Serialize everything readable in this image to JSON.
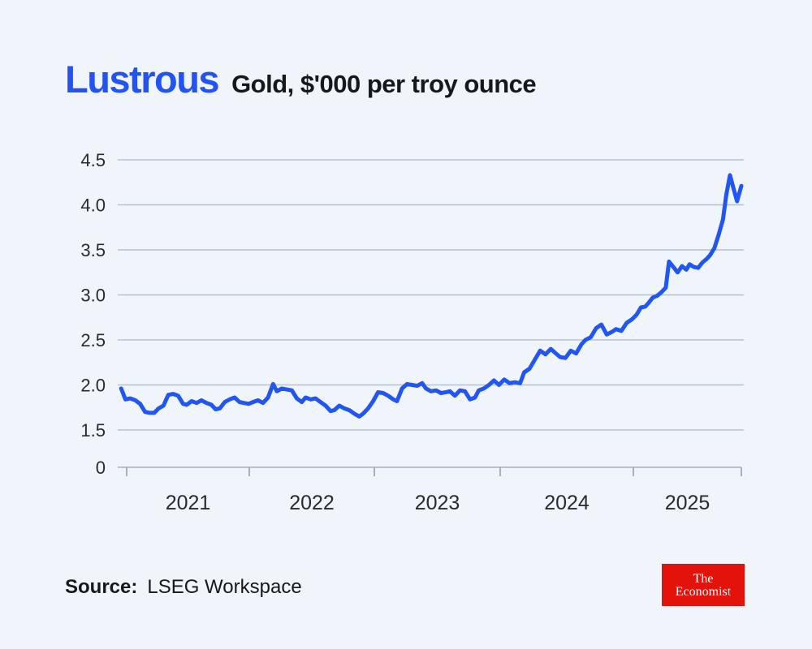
{
  "header": {
    "title": "Lustrous",
    "subtitle": "Gold, $'000 per troy ounce"
  },
  "footer": {
    "source_label": "Source:",
    "source_value": "LSEG Workspace",
    "logo_line1": "The",
    "logo_line2": "Economist"
  },
  "colors": {
    "background": "#f0f5fc",
    "title_blue": "#2453f3",
    "line_blue": "#2156f2",
    "text_dark": "#15181f",
    "axis_text": "#262a33",
    "gridline": "#b8c2cf",
    "axis_line": "#a6b0bf",
    "logo_red": "#e3120b",
    "logo_text": "#ffffff"
  },
  "chart_data": {
    "type": "line",
    "title": "Lustrous",
    "subtitle": "Gold, $'000 per troy ounce",
    "ylabel": "$'000 per troy ounce",
    "xlabel": "",
    "grid": true,
    "legend": false,
    "x_tick_years": [
      2021,
      2022,
      2023,
      2024,
      2025
    ],
    "y_ticks": [
      4.5,
      4.0,
      3.5,
      3.0,
      2.5,
      2.0,
      1.5,
      0
    ],
    "y_tick_labels": [
      "4.5",
      "4.0",
      "3.5",
      "3.0",
      "2.5",
      "2.0",
      "1.5",
      "0"
    ],
    "y_axis_broken_below": 1.5,
    "x_range_years": [
      2020.955,
      2026.0
    ],
    "series": [
      {
        "name": "Gold price, $'000 per troy ounce",
        "points": [
          [
            2020.955,
            1.96
          ],
          [
            2020.99,
            1.84
          ],
          [
            2021.03,
            1.85
          ],
          [
            2021.07,
            1.83
          ],
          [
            2021.11,
            1.79
          ],
          [
            2021.15,
            1.7
          ],
          [
            2021.19,
            1.69
          ],
          [
            2021.225,
            1.69
          ],
          [
            2021.26,
            1.74
          ],
          [
            2021.3,
            1.77
          ],
          [
            2021.34,
            1.89
          ],
          [
            2021.38,
            1.9
          ],
          [
            2021.42,
            1.88
          ],
          [
            2021.46,
            1.79
          ],
          [
            2021.49,
            1.78
          ],
          [
            2021.53,
            1.82
          ],
          [
            2021.57,
            1.8
          ],
          [
            2021.61,
            1.83
          ],
          [
            2021.65,
            1.8
          ],
          [
            2021.69,
            1.78
          ],
          [
            2021.725,
            1.73
          ],
          [
            2021.76,
            1.74
          ],
          [
            2021.8,
            1.81
          ],
          [
            2021.84,
            1.84
          ],
          [
            2021.88,
            1.86
          ],
          [
            2021.92,
            1.81
          ],
          [
            2021.955,
            1.8
          ],
          [
            2021.995,
            1.79
          ],
          [
            2022.03,
            1.81
          ],
          [
            2022.07,
            1.83
          ],
          [
            2022.11,
            1.8
          ],
          [
            2022.15,
            1.86
          ],
          [
            2022.19,
            2.01
          ],
          [
            2022.22,
            1.93
          ],
          [
            2022.26,
            1.96
          ],
          [
            2022.3,
            1.95
          ],
          [
            2022.34,
            1.94
          ],
          [
            2022.38,
            1.85
          ],
          [
            2022.42,
            1.81
          ],
          [
            2022.45,
            1.86
          ],
          [
            2022.49,
            1.84
          ],
          [
            2022.53,
            1.85
          ],
          [
            2022.57,
            1.81
          ],
          [
            2022.61,
            1.77
          ],
          [
            2022.65,
            1.71
          ],
          [
            2022.68,
            1.72
          ],
          [
            2022.72,
            1.77
          ],
          [
            2022.76,
            1.74
          ],
          [
            2022.8,
            1.72
          ],
          [
            2022.84,
            1.68
          ],
          [
            2022.88,
            1.65
          ],
          [
            2022.91,
            1.68
          ],
          [
            2022.95,
            1.74
          ],
          [
            2022.99,
            1.82
          ],
          [
            2023.03,
            1.92
          ],
          [
            2023.07,
            1.91
          ],
          [
            2023.11,
            1.88
          ],
          [
            2023.15,
            1.84
          ],
          [
            2023.18,
            1.82
          ],
          [
            2023.22,
            1.96
          ],
          [
            2023.26,
            2.01
          ],
          [
            2023.3,
            2.0
          ],
          [
            2023.34,
            1.99
          ],
          [
            2023.38,
            2.02
          ],
          [
            2023.41,
            1.96
          ],
          [
            2023.45,
            1.93
          ],
          [
            2023.49,
            1.94
          ],
          [
            2023.53,
            1.91
          ],
          [
            2023.57,
            1.92
          ],
          [
            2023.6,
            1.93
          ],
          [
            2023.64,
            1.88
          ],
          [
            2023.68,
            1.94
          ],
          [
            2023.72,
            1.93
          ],
          [
            2023.76,
            1.84
          ],
          [
            2023.8,
            1.86
          ],
          [
            2023.83,
            1.94
          ],
          [
            2023.87,
            1.96
          ],
          [
            2023.91,
            2.0
          ],
          [
            2023.95,
            2.05
          ],
          [
            2023.99,
            2.0
          ],
          [
            2024.03,
            2.06
          ],
          [
            2024.07,
            2.02
          ],
          [
            2024.11,
            2.03
          ],
          [
            2024.15,
            2.02
          ],
          [
            2024.18,
            2.14
          ],
          [
            2024.22,
            2.18
          ],
          [
            2024.26,
            2.28
          ],
          [
            2024.3,
            2.38
          ],
          [
            2024.34,
            2.34
          ],
          [
            2024.38,
            2.4
          ],
          [
            2024.41,
            2.36
          ],
          [
            2024.45,
            2.31
          ],
          [
            2024.49,
            2.3
          ],
          [
            2024.53,
            2.38
          ],
          [
            2024.57,
            2.35
          ],
          [
            2024.61,
            2.45
          ],
          [
            2024.64,
            2.5
          ],
          [
            2024.68,
            2.53
          ],
          [
            2024.72,
            2.63
          ],
          [
            2024.76,
            2.67
          ],
          [
            2024.8,
            2.56
          ],
          [
            2024.84,
            2.59
          ],
          [
            2024.87,
            2.62
          ],
          [
            2024.91,
            2.6
          ],
          [
            2024.95,
            2.69
          ],
          [
            2024.99,
            2.73
          ],
          [
            2025.03,
            2.78
          ],
          [
            2025.07,
            2.86
          ],
          [
            2025.11,
            2.87
          ],
          [
            2025.14,
            2.91
          ],
          [
            2025.18,
            2.97
          ],
          [
            2025.22,
            2.99
          ],
          [
            2025.26,
            3.03
          ],
          [
            2025.3,
            3.08
          ],
          [
            2025.33,
            3.37
          ],
          [
            2025.37,
            3.31
          ],
          [
            2025.41,
            3.25
          ],
          [
            2025.45,
            3.32
          ],
          [
            2025.49,
            3.28
          ],
          [
            2025.52,
            3.34
          ],
          [
            2025.56,
            3.31
          ],
          [
            2025.6,
            3.3
          ],
          [
            2025.64,
            3.36
          ],
          [
            2025.68,
            3.4
          ],
          [
            2025.71,
            3.44
          ],
          [
            2025.75,
            3.52
          ],
          [
            2025.79,
            3.67
          ],
          [
            2025.83,
            3.84
          ],
          [
            2025.86,
            4.11
          ],
          [
            2025.895,
            4.33
          ],
          [
            2025.93,
            4.17
          ],
          [
            2025.96,
            4.04
          ],
          [
            2026.0,
            4.21
          ]
        ]
      }
    ]
  }
}
